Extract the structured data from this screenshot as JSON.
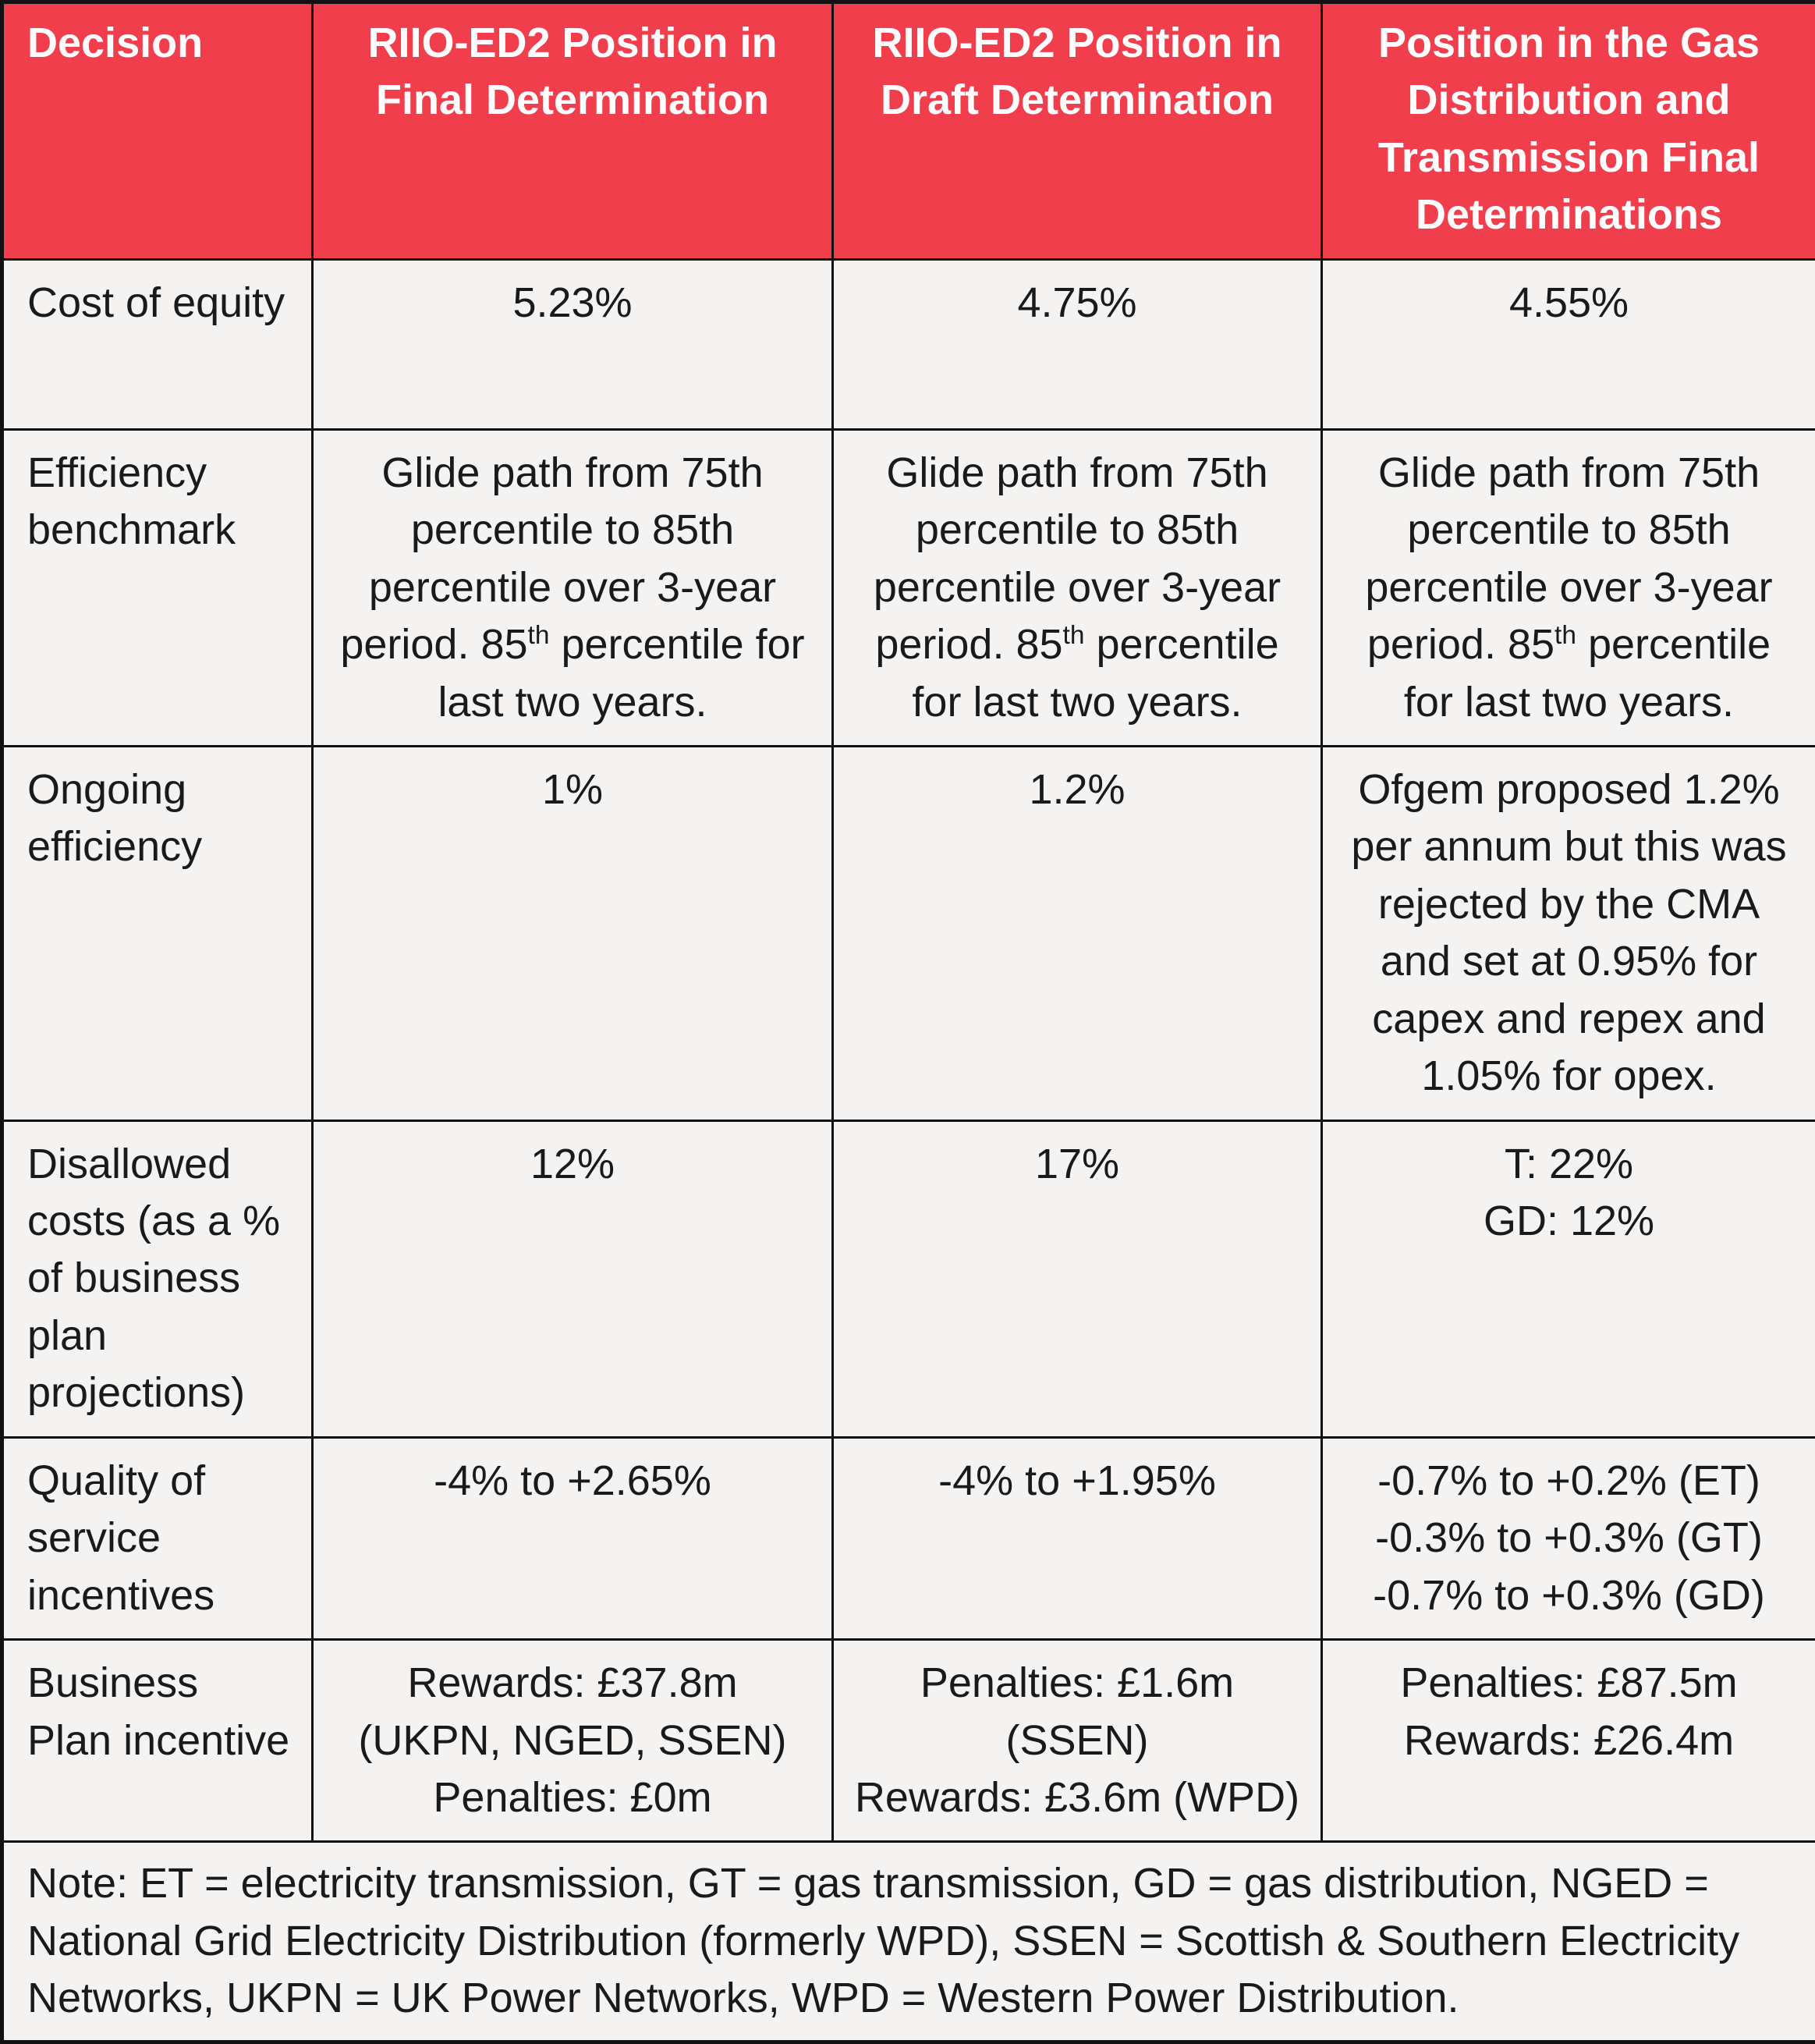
{
  "colors": {
    "header_bg": "#f13e4d",
    "header_text": "#fffdfd",
    "cell_bg": "#f4f3f2",
    "border": "#111111"
  },
  "table": {
    "headers": {
      "decision": "Decision",
      "final": "RIIO-ED2 Position in Final Determination",
      "draft": "RIIO-ED2 Position in Draft Determination",
      "gas": "Position in the Gas Distribution and Transmission Final Determinations"
    },
    "rows": {
      "cost_of_equity": {
        "label": "Cost of equity",
        "final": "5.23%",
        "draft": "4.75%",
        "gas": "4.55%"
      },
      "efficiency_benchmark": {
        "label": "Efficiency benchmark",
        "final_html": "Glide path from 75th percentile to 85th percentile over 3-year period. 85<sup>th</sup> percentile for last two years.",
        "draft_html": "Glide path from 75th percentile to 85th percentile over 3-year period. 85<sup>th</sup> percentile for last two years.",
        "gas_html": "Glide path from 75th percentile to 85th percentile over 3-year period. 85<sup>th</sup> percentile for last two years."
      },
      "ongoing_efficiency": {
        "label": "Ongoing efficiency",
        "final": "1%",
        "draft": "1.2%",
        "gas": "Ofgem proposed 1.2% per annum but this was rejected by the CMA and set at 0.95% for capex and repex and 1.05% for opex."
      },
      "disallowed_costs": {
        "label": "Disallowed costs (as a % of business plan projections)",
        "final": "12%",
        "draft": "17%",
        "gas": "T: 22%\nGD: 12%"
      },
      "quality_of_service": {
        "label": "Quality of service incentives",
        "final": "-4% to +2.65%",
        "draft": "-4% to +1.95%",
        "gas": "-0.7% to +0.2% (ET)\n-0.3% to +0.3% (GT)\n-0.7% to +0.3% (GD)"
      },
      "business_plan_incentive": {
        "label": "Business Plan incentive",
        "final": "Rewards: £37.8m (UKPN, NGED, SSEN)\nPenalties: £0m",
        "draft": "Penalties: £1.6m (SSEN)\nRewards: £3.6m (WPD)",
        "gas": "Penalties: £87.5m\nRewards: £26.4m"
      }
    },
    "note": "Note: ET = electricity transmission, GT = gas transmission, GD = gas distribution, NGED = National Grid Electricity Distribution (formerly WPD), SSEN = Scottish & Southern Electricity Networks, UKPN = UK Power Networks, WPD = Western Power Distribution."
  }
}
